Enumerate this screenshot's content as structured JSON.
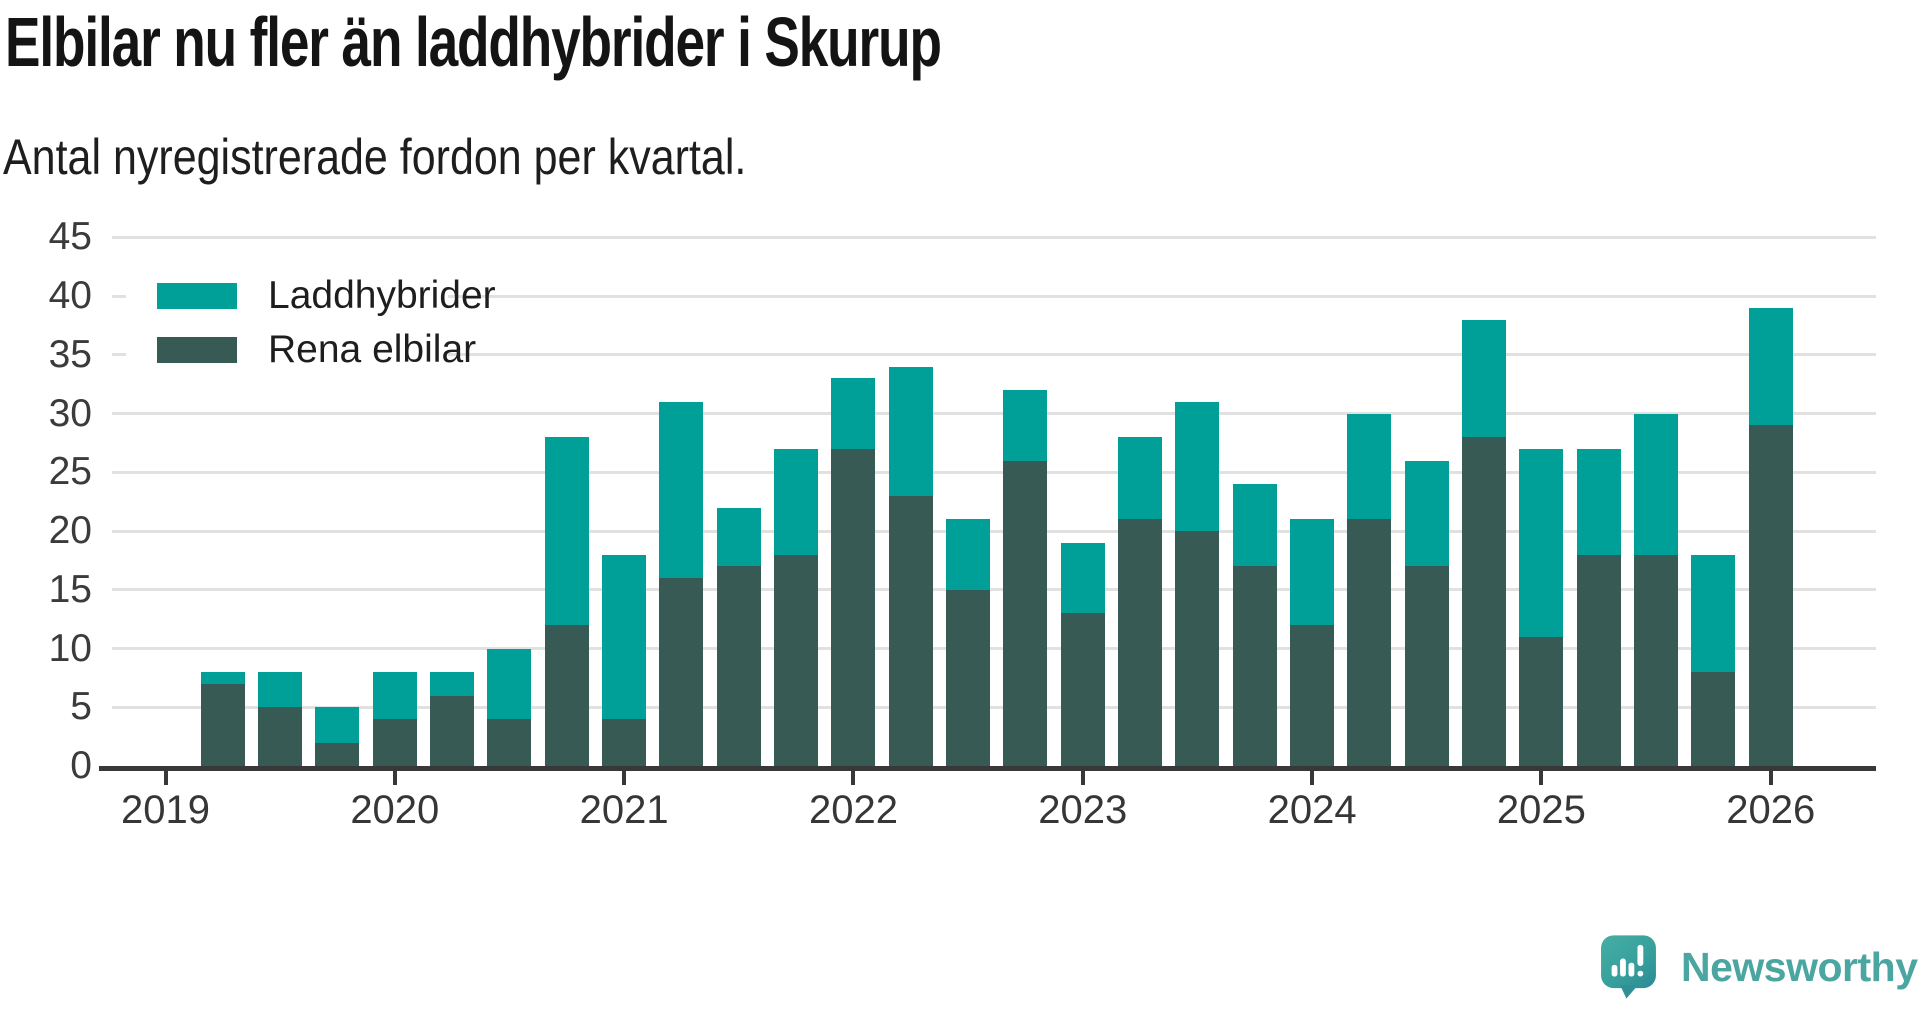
{
  "header": {
    "title": "Elbilar nu fler än laddhybrider i Skurup",
    "subtitle": "Antal nyregistrerade fordon per kvartal."
  },
  "legend": [
    {
      "label": "Laddhybrider",
      "color": "#00A099"
    },
    {
      "label": "Rena elbilar",
      "color": "#375B54"
    }
  ],
  "chart_data": {
    "type": "bar",
    "stacked": true,
    "title": "Elbilar nu fler än laddhybrider i Skurup",
    "subtitle": "Antal nyregistrerade fordon per kvartal.",
    "xlabel": "",
    "ylabel": "",
    "ylim": [
      0,
      45
    ],
    "y_ticks": [
      0,
      5,
      10,
      15,
      20,
      25,
      30,
      35,
      40,
      45
    ],
    "grid": true,
    "legend_position": "upper-left",
    "categories": [
      "2019-K1",
      "2019-K2",
      "2019-K3",
      "2019-K4",
      "2020-K1",
      "2020-K2",
      "2020-K3",
      "2020-K4",
      "2021-K1",
      "2021-K2",
      "2021-K3",
      "2021-K4",
      "2022-K1",
      "2022-K2",
      "2022-K3",
      "2022-K4",
      "2023-K1",
      "2023-K2",
      "2023-K3",
      "2023-K4",
      "2024-K1",
      "2024-K2",
      "2024-K3",
      "2024-K4",
      "2025-K1",
      "2025-K2",
      "2025-K3",
      "2025-K4",
      "2026-K1"
    ],
    "x_tick_labels": [
      "2019",
      "2020",
      "2021",
      "2022",
      "2023",
      "2024",
      "2025",
      "2026"
    ],
    "x_tick_every_n_categories": 4,
    "series": [
      {
        "name": "Rena elbilar",
        "color": "#375B54",
        "values": [
          0,
          7,
          5,
          2,
          4,
          6,
          4,
          12,
          4,
          16,
          17,
          18,
          27,
          23,
          15,
          26,
          13,
          21,
          20,
          17,
          12,
          21,
          17,
          28,
          11,
          18,
          18,
          8,
          29
        ]
      },
      {
        "name": "Laddhybrider",
        "color": "#00A099",
        "values": [
          0,
          1,
          3,
          3,
          4,
          2,
          6,
          16,
          14,
          15,
          5,
          9,
          6,
          11,
          6,
          6,
          6,
          7,
          11,
          7,
          9,
          9,
          9,
          10,
          16,
          9,
          12,
          10,
          10
        ]
      }
    ],
    "totals": [
      0,
      8,
      8,
      5,
      8,
      8,
      10,
      28,
      18,
      31,
      22,
      27,
      33,
      34,
      21,
      32,
      19,
      28,
      31,
      24,
      21,
      30,
      26,
      38,
      27,
      27,
      30,
      18,
      39
    ]
  },
  "axis_colors": {
    "gridline": "#e1e1e1",
    "axis_line": "#383838",
    "tick_label": "#3b3b3b"
  },
  "footer": {
    "brand": "Newsworthy"
  }
}
